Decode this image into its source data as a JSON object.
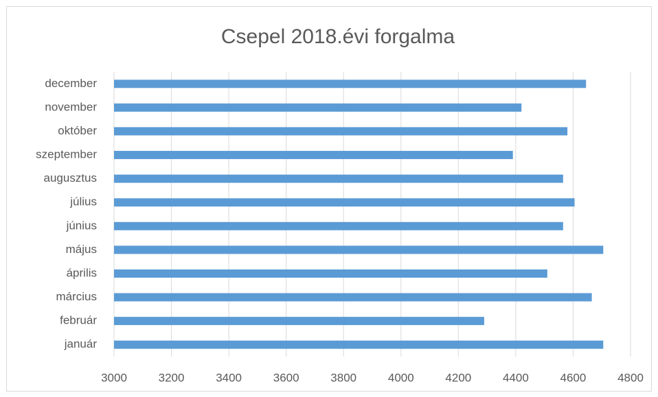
{
  "chart_data": {
    "type": "bar",
    "orientation": "horizontal",
    "title": "Csepel 2018.évi forgalma",
    "categories": [
      "január",
      "február",
      "március",
      "április",
      "május",
      "június",
      "július",
      "augusztus",
      "szeptember",
      "október",
      "november",
      "december"
    ],
    "values": [
      4705,
      4290,
      4665,
      4510,
      4705,
      4565,
      4605,
      4565,
      4390,
      4580,
      4420,
      4645
    ],
    "color": "#5b9bd5",
    "xlim": [
      3000,
      4800
    ],
    "xticks": [
      3000,
      3200,
      3400,
      3600,
      3800,
      4000,
      4200,
      4400,
      4600,
      4800
    ],
    "grid": true
  }
}
